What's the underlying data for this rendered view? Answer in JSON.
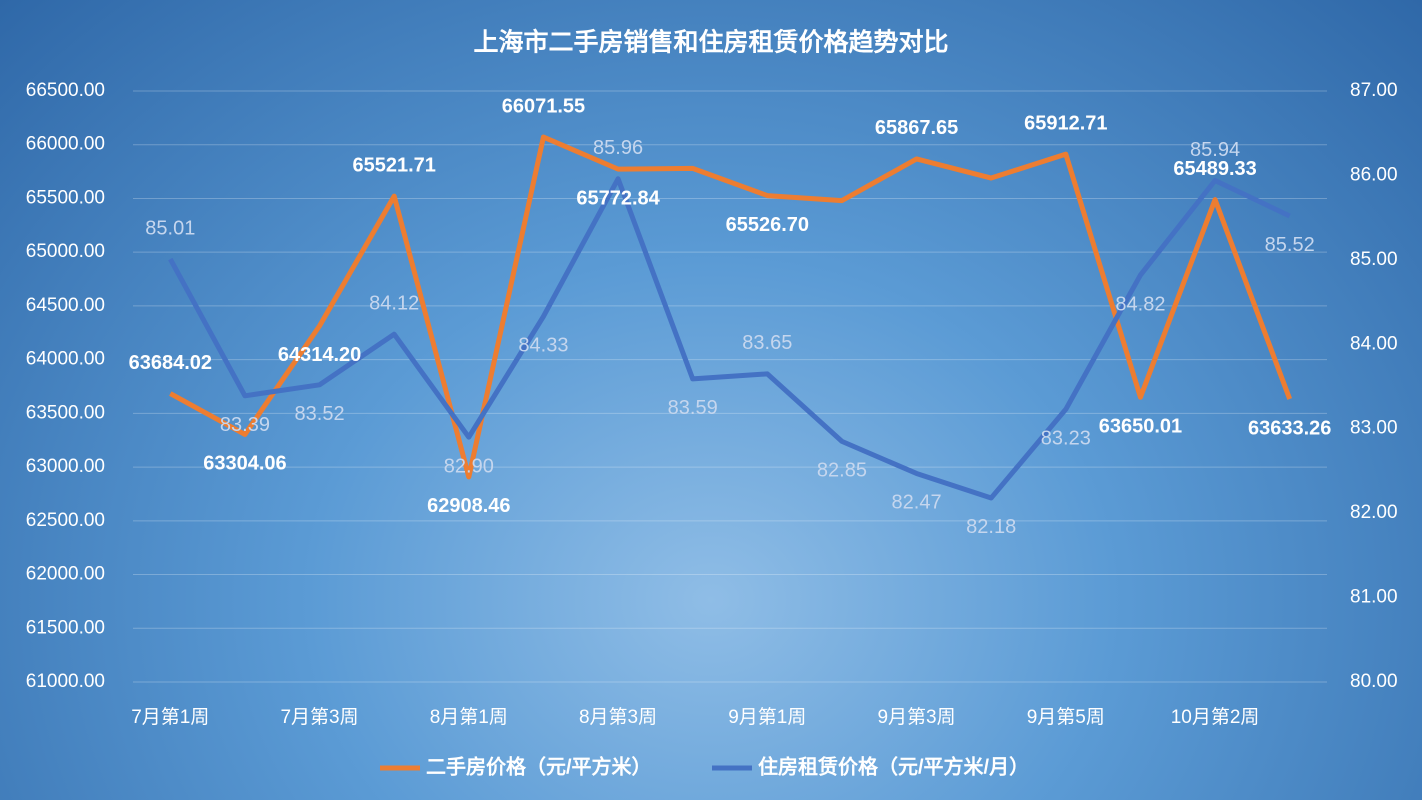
{
  "chart_data": {
    "type": "line",
    "title": "上海市二手房销售和住房租赁价格趋势对比",
    "categories": [
      "7月第1周",
      null,
      "7月第3周",
      null,
      "8月第1周",
      null,
      "8月第3周",
      null,
      "9月第1周",
      null,
      "9月第3周",
      null,
      "9月第5周",
      null,
      "10月第2周",
      null
    ],
    "series": [
      {
        "name": "二手房价格（元/平方米）",
        "color": "#ed7d31",
        "values": [
          63684.02,
          63304.06,
          64314.2,
          65521.71,
          62908.46,
          66071.55,
          65772.84,
          65780,
          65526.7,
          65480,
          65867.65,
          65690,
          65912.71,
          63650.01,
          65489.33,
          63633.26
        ],
        "value_labels": [
          "63684.02",
          "63304.06",
          "64314.20",
          "65521.71",
          "62908.46",
          "66071.55",
          "65772.84",
          null,
          "65526.70",
          null,
          "65867.65",
          null,
          "65912.71",
          "63650.01",
          "65489.33",
          "63633.26"
        ]
      },
      {
        "name": "住房租赁价格（元/平方米/月）",
        "color": "#4472c4",
        "axis": "y2",
        "values": [
          85.01,
          83.39,
          83.52,
          84.12,
          82.9,
          84.33,
          85.96,
          83.59,
          83.65,
          82.85,
          82.47,
          82.18,
          83.23,
          84.82,
          85.94,
          85.52
        ],
        "value_labels": [
          "85.01",
          "83.39",
          "83.52",
          "84.12",
          "82.90",
          "84.33",
          "85.96",
          "83.59",
          "83.65",
          "82.85",
          "82.47",
          "82.18",
          "83.23",
          "84.82",
          "85.94",
          "85.52"
        ]
      }
    ],
    "ylim": [
      61000,
      66500
    ],
    "yticks": [
      {
        "value": 61000,
        "label": "61000.00"
      },
      {
        "value": 61500,
        "label": "61500.00"
      },
      {
        "value": 62000,
        "label": "62000.00"
      },
      {
        "value": 62500,
        "label": "62500.00"
      },
      {
        "value": 63000,
        "label": "63000.00"
      },
      {
        "value": 63500,
        "label": "63500.00"
      },
      {
        "value": 64000,
        "label": "64000.00"
      },
      {
        "value": 64500,
        "label": "64500.00"
      },
      {
        "value": 65000,
        "label": "65000.00"
      },
      {
        "value": 65500,
        "label": "65500.00"
      },
      {
        "value": 66000,
        "label": "66000.00"
      },
      {
        "value": 66500,
        "label": "66500.00"
      }
    ],
    "y2lim": [
      80,
      87
    ],
    "y2ticks": [
      {
        "value": 80,
        "label": "80.00"
      },
      {
        "value": 81,
        "label": "81.00"
      },
      {
        "value": 82,
        "label": "82.00"
      },
      {
        "value": 83,
        "label": "83.00"
      },
      {
        "value": 84,
        "label": "84.00"
      },
      {
        "value": 85,
        "label": "85.00"
      },
      {
        "value": 86,
        "label": "86.00"
      },
      {
        "value": 87,
        "label": "87.00"
      }
    ],
    "grid": true,
    "legend": "bottom"
  }
}
